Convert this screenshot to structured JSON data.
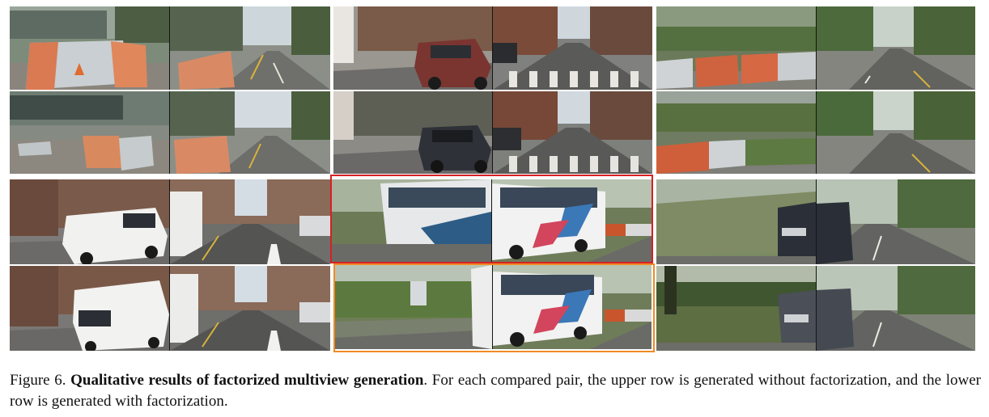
{
  "caption": {
    "label": "Figure 6.",
    "bold": "Qualitative results of factorized multiview generation",
    "text": ". For each compared pair, the upper row is generated without factorization, and the lower row is generated with factorization."
  },
  "panels": [
    {
      "name": "scene-construction-barriers",
      "rows": [
        "without factorization",
        "with factorization"
      ]
    },
    {
      "name": "scene-city-crosswalk-car",
      "rows": [
        "without factorization",
        "with factorization"
      ]
    },
    {
      "name": "scene-park-barriers",
      "rows": [
        "without factorization",
        "with factorization"
      ]
    },
    {
      "name": "scene-white-van",
      "rows": [
        "without factorization",
        "with factorization"
      ]
    },
    {
      "name": "scene-white-bus",
      "rows": [
        "without factorization",
        "with factorization"
      ]
    },
    {
      "name": "scene-dark-suv",
      "rows": [
        "without factorization",
        "with factorization"
      ]
    }
  ],
  "colors": {
    "highlight_without": "#d62024",
    "highlight_with": "#f08a24"
  }
}
